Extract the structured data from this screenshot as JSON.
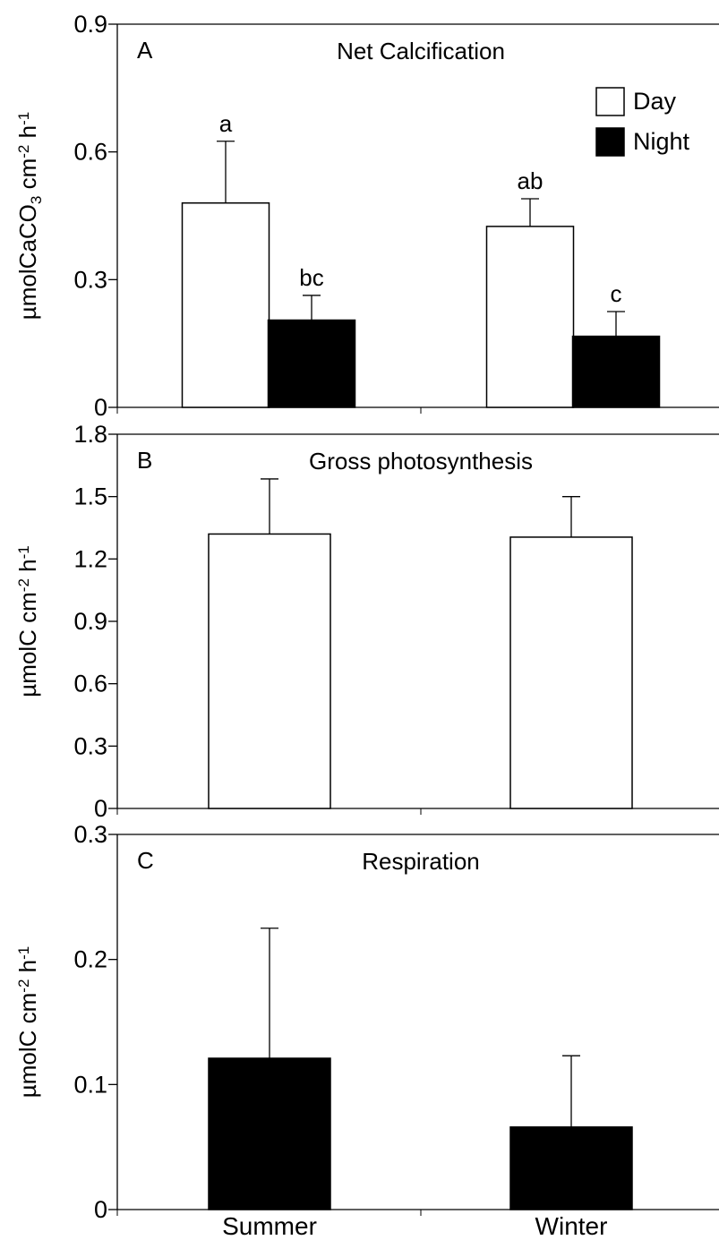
{
  "x_categories": [
    "Summer",
    "Winter"
  ],
  "legend": [
    {
      "label": "Day",
      "color": "#ffffff"
    },
    {
      "label": "Night",
      "color": "#000000"
    }
  ],
  "chart_data": [
    {
      "type": "bar",
      "panel_letter": "A",
      "title": "Net Calcification",
      "ylabel": {
        "main": "µmolCaCO",
        "sub": "3",
        "mid": " cm",
        "sup1": "-2",
        "mid2": " h",
        "sup2": "-1"
      },
      "ylim": [
        0,
        0.9
      ],
      "yticks": [
        "0",
        "0.3",
        "0.6",
        "0.9"
      ],
      "categories": [
        "Summer",
        "Winter"
      ],
      "series": [
        {
          "name": "Day",
          "color": "#ffffff",
          "values": [
            0.48,
            0.425
          ],
          "errors": [
            0.145,
            0.065
          ],
          "letters": [
            "a",
            "ab"
          ]
        },
        {
          "name": "Night",
          "color": "#000000",
          "values": [
            0.205,
            0.167
          ],
          "errors": [
            0.058,
            0.058
          ],
          "letters": [
            "bc",
            "c"
          ]
        }
      ]
    },
    {
      "type": "bar",
      "panel_letter": "B",
      "title": "Gross photosynthesis",
      "ylabel": {
        "main": "µmolC cm",
        "sup1": "-2",
        "mid2": " h",
        "sup2": "-1"
      },
      "ylim": [
        0,
        1.8
      ],
      "yticks": [
        "0",
        "0.3",
        "0.6",
        "0.9",
        "1.2",
        "1.5",
        "1.8"
      ],
      "categories": [
        "Summer",
        "Winter"
      ],
      "series": [
        {
          "name": "Day",
          "color": "#ffffff",
          "values": [
            1.32,
            1.305
          ],
          "errors": [
            0.265,
            0.195
          ],
          "letters": [
            "",
            ""
          ]
        }
      ]
    },
    {
      "type": "bar",
      "panel_letter": "C",
      "title": "Respiration",
      "ylabel": {
        "main": "µmolC cm",
        "sup1": "-2",
        "mid2": " h",
        "sup2": "-1"
      },
      "ylim": [
        0,
        0.3
      ],
      "yticks": [
        "0",
        "0.1",
        "0.2",
        "0.3"
      ],
      "categories": [
        "Summer",
        "Winter"
      ],
      "series": [
        {
          "name": "Night",
          "color": "#000000",
          "values": [
            0.121,
            0.066
          ],
          "errors": [
            0.104,
            0.057
          ],
          "letters": [
            "",
            ""
          ]
        }
      ]
    }
  ]
}
